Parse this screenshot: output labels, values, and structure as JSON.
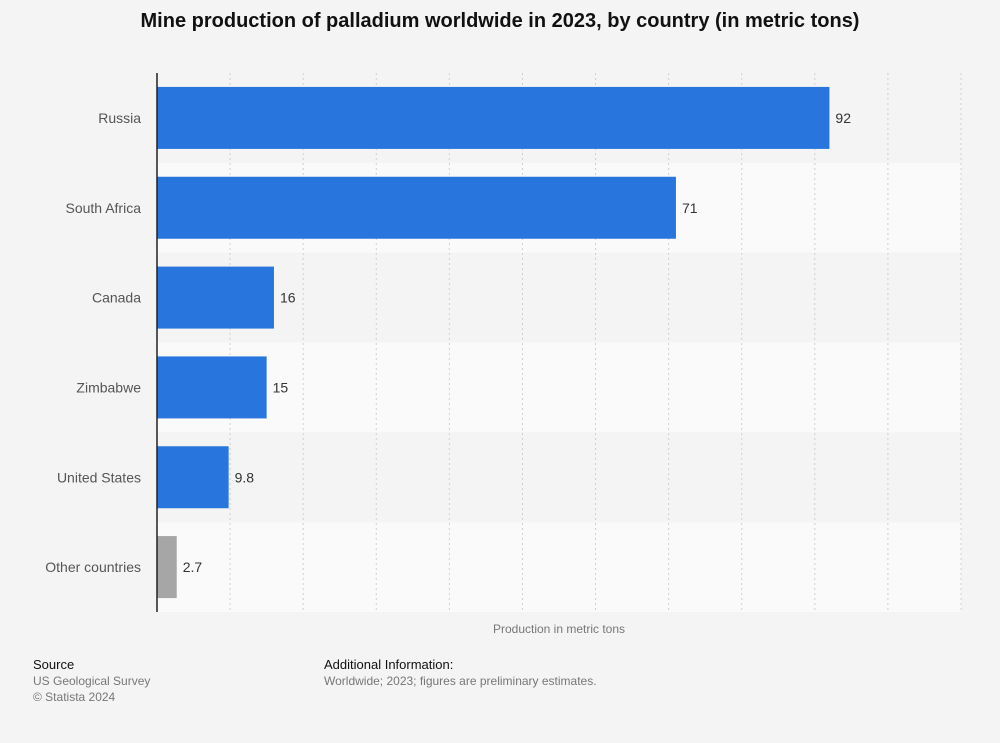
{
  "chart_data": {
    "type": "bar",
    "orientation": "horizontal",
    "title": "Mine production of palladium worldwide in 2023, by country (in metric tons)",
    "xlabel": "Production in metric tons",
    "ylabel": "",
    "categories": [
      "Russia",
      "South Africa",
      "Canada",
      "Zimbabwe",
      "United States",
      "Other countries"
    ],
    "values": [
      92,
      71,
      16,
      15,
      9.8,
      2.7
    ],
    "value_labels": [
      "92",
      "71",
      "16",
      "15",
      "9.8",
      "2.7"
    ],
    "bar_colors": [
      "#2876dd",
      "#2876dd",
      "#2876dd",
      "#2876dd",
      "#2876dd",
      "#a6a6a6"
    ],
    "xlim": [
      0,
      110
    ],
    "grid": true
  },
  "footer": {
    "source_heading": "Source",
    "source_lines": [
      "US Geological Survey",
      "© Statista 2024"
    ],
    "info_heading": "Additional Information:",
    "info_text": "Worldwide; 2023; figures are preliminary estimates."
  }
}
